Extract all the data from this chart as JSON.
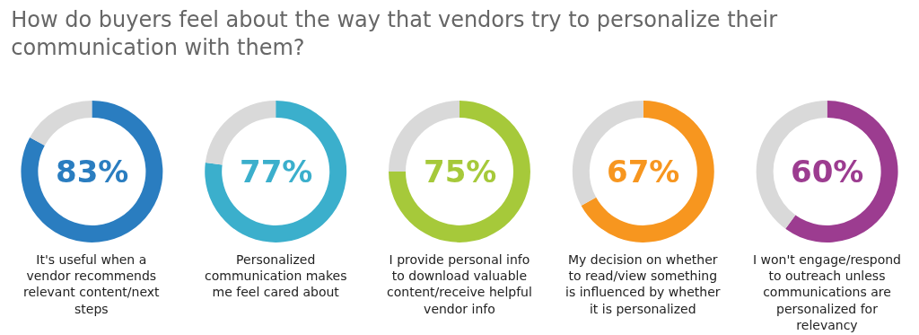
{
  "chart_data": [
    {
      "type": "donut",
      "title": "How do buyers feel about the way that vendors try to personalize their\ncommunication with them?",
      "categories": [
        null,
        null
      ],
      "values": [
        83,
        17
      ],
      "colors": [
        "#2a7dc0",
        "#d9d9d9"
      ],
      "value_labels": [
        "83%",
        null
      ],
      "xlabel": "It's useful when a\nvendor recommends\nrelevant content/next\nsteps",
      "legend": false
    },
    {
      "type": "donut",
      "categories": [
        null,
        null
      ],
      "values": [
        77,
        23
      ],
      "colors": [
        "#3bafcc",
        "#d9d9d9"
      ],
      "value_labels": [
        "77%",
        null
      ],
      "xlabel": "Personalized\ncommunication makes\nme feel cared about",
      "legend": false
    },
    {
      "type": "donut",
      "categories": [
        null,
        null
      ],
      "values": [
        75,
        25
      ],
      "colors": [
        "#a6c93a",
        "#d9d9d9"
      ],
      "value_labels": [
        "75%",
        null
      ],
      "xlabel": "I provide personal info\nto download valuable\ncontent/receive helpful\nvendor info",
      "legend": false
    },
    {
      "type": "donut",
      "categories": [
        null,
        null
      ],
      "values": [
        67,
        33
      ],
      "colors": [
        "#f7961f",
        "#d9d9d9"
      ],
      "value_labels": [
        "67%",
        null
      ],
      "xlabel": "My decision on whether\nto read/view something\nis influenced by whether\nit is personalized",
      "legend": false
    },
    {
      "type": "donut",
      "categories": [
        null,
        null
      ],
      "values": [
        60,
        40
      ],
      "colors": [
        "#9c3c90",
        "#d9d9d9"
      ],
      "value_labels": [
        "60%",
        null
      ],
      "xlabel": "I won't engage/respond\nto outreach unless\ncommunications are\npersonalized for\nrelevancy",
      "legend": false
    }
  ]
}
